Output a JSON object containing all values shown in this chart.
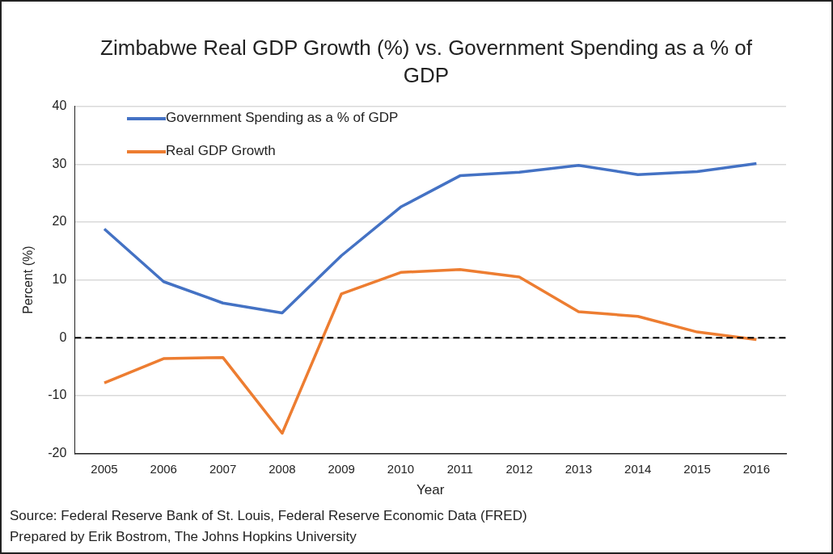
{
  "chart_data": {
    "type": "line",
    "title": "Zimbabwe Real GDP Growth (%) vs. Government Spending as a % of GDP",
    "xlabel": "Year",
    "ylabel": "Percent (%)",
    "categories": [
      "2005",
      "2006",
      "2007",
      "2008",
      "2009",
      "2010",
      "2011",
      "2012",
      "2013",
      "2014",
      "2015",
      "2016"
    ],
    "series": [
      {
        "name": "Government Spending as a % of GDP",
        "color": "#4472c4",
        "values": [
          18.8,
          9.7,
          6.0,
          4.3,
          14.2,
          22.6,
          28.0,
          28.6,
          29.8,
          28.2,
          28.7,
          30.1
        ]
      },
      {
        "name": "Real GDP Growth",
        "color": "#ed7d31",
        "values": [
          -7.8,
          -3.6,
          -3.4,
          -16.5,
          7.6,
          11.3,
          11.8,
          10.5,
          4.5,
          3.7,
          1.0,
          -0.3
        ]
      }
    ],
    "ylim": [
      -20,
      40
    ],
    "yticks": [
      -20,
      -10,
      0,
      10,
      20,
      30,
      40
    ],
    "grid": "y",
    "legend": "top left",
    "marker": "none",
    "line_style": "solid",
    "ref_lines": [
      {
        "axis": "y",
        "value": 0,
        "color": "#000000",
        "line_style": "dashed"
      }
    ],
    "annotations": [
      "Source: Federal Reserve Bank of St. Louis, Federal Reserve Economic Data (FRED)",
      "Prepared by Erik Bostrom, The Johns Hopkins University"
    ]
  }
}
